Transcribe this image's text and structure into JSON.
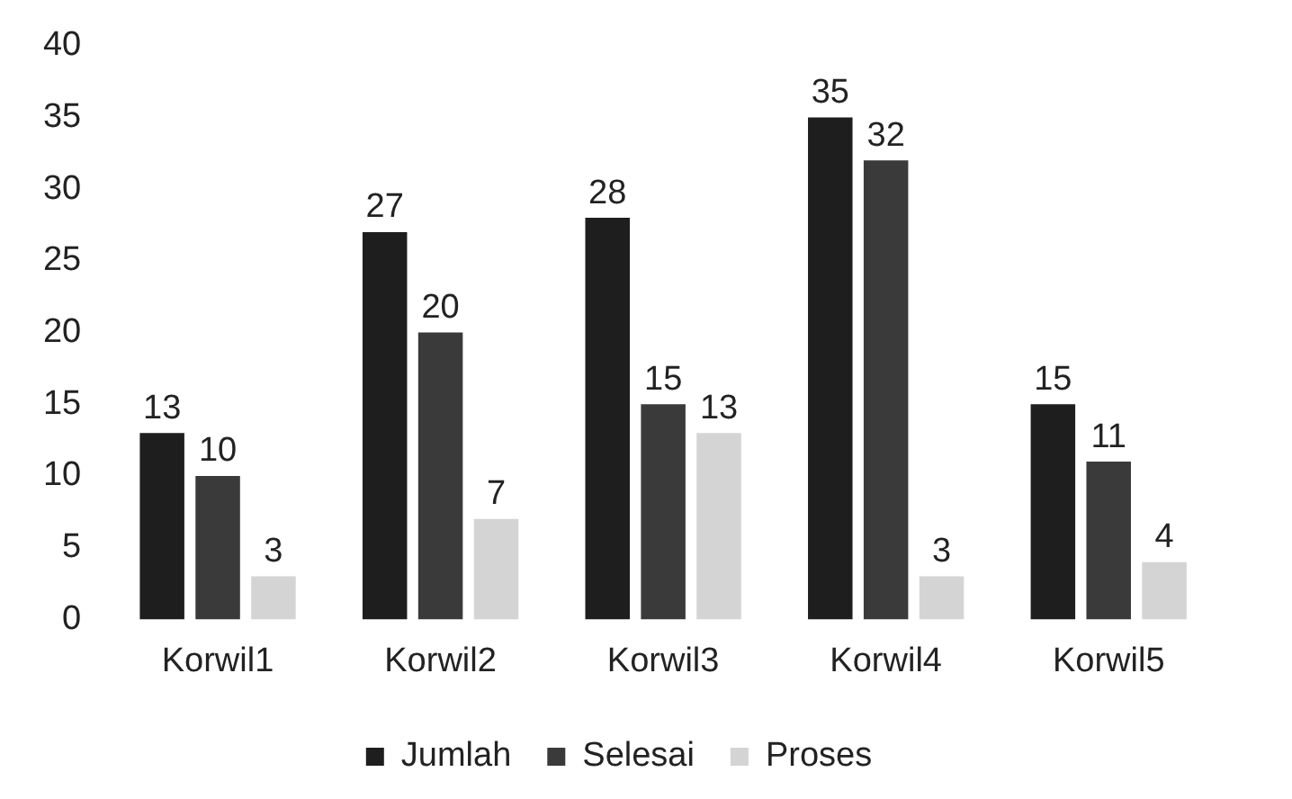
{
  "chart_data": {
    "type": "bar",
    "categories": [
      "Korwil1",
      "Korwil2",
      "Korwil3",
      "Korwil4",
      "Korwil5"
    ],
    "series": [
      {
        "name": "Jumlah",
        "color": "#1e1e1e",
        "values": [
          13,
          27,
          28,
          35,
          15
        ]
      },
      {
        "name": "Selesai",
        "color": "#3a3a3a",
        "values": [
          10,
          20,
          15,
          32,
          11
        ]
      },
      {
        "name": "Proses",
        "color": "#d4d4d4",
        "values": [
          3,
          7,
          13,
          3,
          4
        ]
      }
    ],
    "ylim": [
      0,
      40
    ],
    "yticks": [
      0,
      5,
      10,
      15,
      20,
      25,
      30,
      35,
      40
    ],
    "grid": false,
    "legend": "bottom",
    "data_labels": true
  }
}
